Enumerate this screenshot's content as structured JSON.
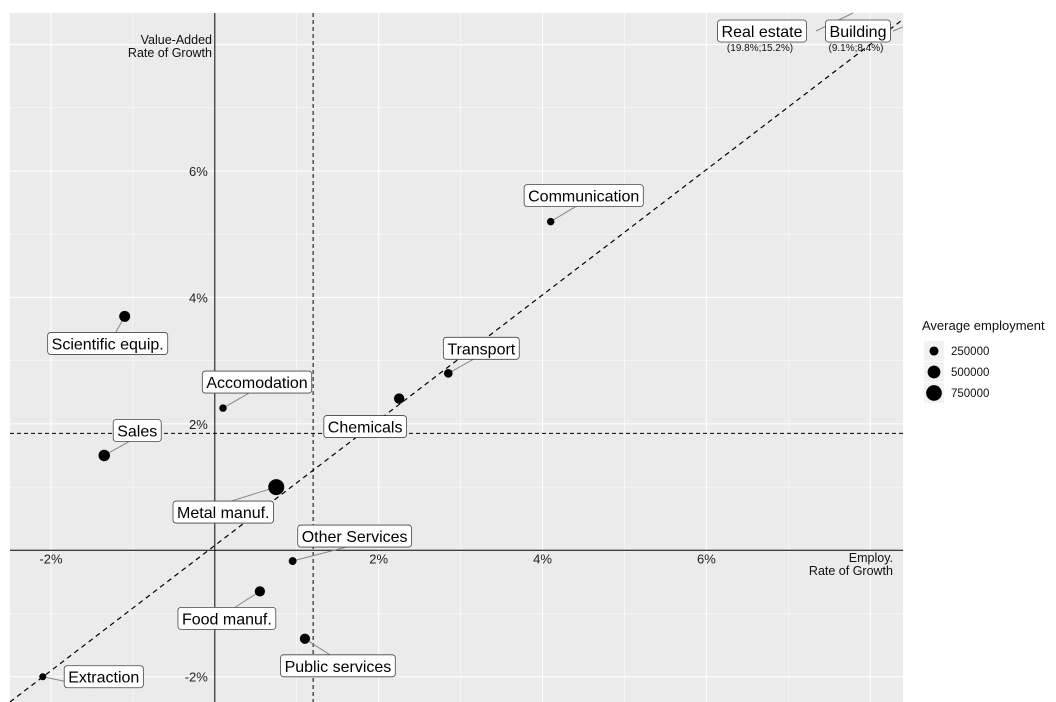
{
  "chart_data": {
    "type": "scatter",
    "xlabel": [
      "Employ.",
      "Rate of Growth"
    ],
    "ylabel": [
      "Value-Added",
      "Rate of Growth"
    ],
    "xlim": [
      -2.5,
      8.4
    ],
    "ylim": [
      -2.4,
      8.5
    ],
    "x_ticks": [
      {
        "value": -2,
        "label": "-2%"
      },
      {
        "value": 2,
        "label": "2%"
      },
      {
        "value": 4,
        "label": "4%"
      },
      {
        "value": 6,
        "label": "6%"
      }
    ],
    "y_ticks": [
      {
        "value": -2,
        "label": "-2%"
      },
      {
        "value": 2,
        "label": "2%"
      },
      {
        "value": 4,
        "label": "4%"
      },
      {
        "value": 6,
        "label": "6%"
      }
    ],
    "reference_lines": {
      "vertical_x": 1.2,
      "horizontal_y": 1.85,
      "diagonal": [
        [
          -2.5,
          -2.4
        ],
        [
          8.4,
          8.4
        ]
      ]
    },
    "grid": true,
    "legend": {
      "title": "Average employment",
      "position": "right",
      "entries": [
        {
          "label": "250000",
          "value": 250000
        },
        {
          "label": "500000",
          "value": 500000
        },
        {
          "label": "750000",
          "value": 750000
        }
      ]
    },
    "points": [
      {
        "name": "Extraction",
        "x": -2.1,
        "y": -2.0,
        "size": 150000
      },
      {
        "name": "Sales",
        "x": -1.35,
        "y": 1.5,
        "size": 400000
      },
      {
        "name": "Scientific equip.",
        "x": -1.1,
        "y": 3.7,
        "size": 370000
      },
      {
        "name": "Accomodation",
        "x": 0.1,
        "y": 2.25,
        "size": 170000
      },
      {
        "name": "Metal manuf.",
        "x": 0.75,
        "y": 1.0,
        "size": 780000
      },
      {
        "name": "Other Services",
        "x": 0.95,
        "y": -0.17,
        "size": 190000
      },
      {
        "name": "Food manuf.",
        "x": 0.55,
        "y": -0.65,
        "size": 320000
      },
      {
        "name": "Public services",
        "x": 1.1,
        "y": -1.4,
        "size": 320000
      },
      {
        "name": "Chemicals",
        "x": 2.25,
        "y": 2.4,
        "size": 330000
      },
      {
        "name": "Transport",
        "x": 2.85,
        "y": 2.8,
        "size": 230000
      },
      {
        "name": "Communication",
        "x": 4.1,
        "y": 5.2,
        "size": 170000
      }
    ],
    "offscale_points": [
      {
        "name": "Real estate",
        "note": "(19.8%;15.2%)"
      },
      {
        "name": "Building",
        "note": "(9.1%;8.4%)"
      }
    ]
  }
}
